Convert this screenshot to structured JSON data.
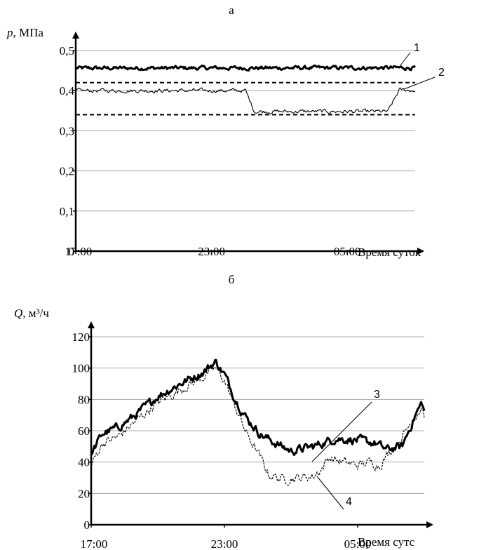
{
  "chart_data": [
    {
      "type": "line",
      "panel_label": "а",
      "y_axis_label_var": "p",
      "y_axis_label_unit": ", МПа",
      "x_axis_label": "Время суток",
      "x_ticks": [
        "17:00",
        "23:00",
        "05:00"
      ],
      "y_ticks": [
        "0",
        "0,1",
        "0,2",
        "0,3",
        "0,4",
        "0,5"
      ],
      "x_range_hours": [
        0,
        15
      ],
      "ylim": [
        0,
        0.5
      ],
      "grid": true,
      "series": [
        {
          "name": "1",
          "style": "thick-noisy",
          "points": [
            [
              0,
              0.456
            ],
            [
              15,
              0.457
            ]
          ]
        },
        {
          "name": "2",
          "style": "thin-noisy",
          "points": [
            [
              0,
              0.4
            ],
            [
              7.5,
              0.4
            ],
            [
              7.9,
              0.348
            ],
            [
              13.8,
              0.348
            ],
            [
              14.3,
              0.402
            ],
            [
              15,
              0.4
            ]
          ]
        }
      ],
      "reference_lines": [
        0.42,
        0.34
      ]
    },
    {
      "type": "line",
      "panel_label": "б",
      "y_axis_label_var": "Q",
      "y_axis_label_unit": ", м³/ч",
      "x_axis_label": "Время сутс",
      "x_ticks": [
        "17:00",
        "23:00",
        "05:00"
      ],
      "y_ticks": [
        "0",
        "20",
        "40",
        "60",
        "80",
        "100",
        "120"
      ],
      "x_range_hours": [
        0,
        15
      ],
      "ylim": [
        0,
        120
      ],
      "grid": true,
      "series": [
        {
          "name": "3",
          "style": "thick-noisy",
          "points": [
            [
              0,
              45
            ],
            [
              0.5,
              58
            ],
            [
              1.2,
              62
            ],
            [
              2,
              70
            ],
            [
              3,
              82
            ],
            [
              4,
              90
            ],
            [
              5,
              97
            ],
            [
              5.6,
              104
            ],
            [
              6,
              96
            ],
            [
              6.5,
              80
            ],
            [
              7,
              68
            ],
            [
              7.6,
              58
            ],
            [
              8.3,
              52
            ],
            [
              9,
              47
            ],
            [
              10,
              50
            ],
            [
              11,
              55
            ],
            [
              12,
              54
            ],
            [
              12.8,
              52
            ],
            [
              13.3,
              48
            ],
            [
              14,
              50
            ],
            [
              14.6,
              70
            ],
            [
              14.9,
              78
            ],
            [
              15,
              72
            ]
          ]
        },
        {
          "name": "4",
          "style": "thin-dashed-noisy",
          "points": [
            [
              0,
              38
            ],
            [
              0.5,
              52
            ],
            [
              1.2,
              56
            ],
            [
              2,
              66
            ],
            [
              3,
              78
            ],
            [
              4,
              86
            ],
            [
              5,
              94
            ],
            [
              5.6,
              100
            ],
            [
              6,
              92
            ],
            [
              6.5,
              75
            ],
            [
              7,
              58
            ],
            [
              7.5,
              46
            ],
            [
              8,
              32
            ],
            [
              8.6,
              29
            ],
            [
              9.4,
              30
            ],
            [
              10,
              31
            ],
            [
              10.4,
              36
            ],
            [
              10.7,
              43
            ],
            [
              11.3,
              40
            ],
            [
              12,
              38
            ],
            [
              12.5,
              40
            ],
            [
              13,
              38
            ],
            [
              13.4,
              46
            ],
            [
              14,
              56
            ],
            [
              14.6,
              70
            ],
            [
              14.9,
              75
            ],
            [
              15,
              70
            ]
          ]
        }
      ]
    }
  ]
}
